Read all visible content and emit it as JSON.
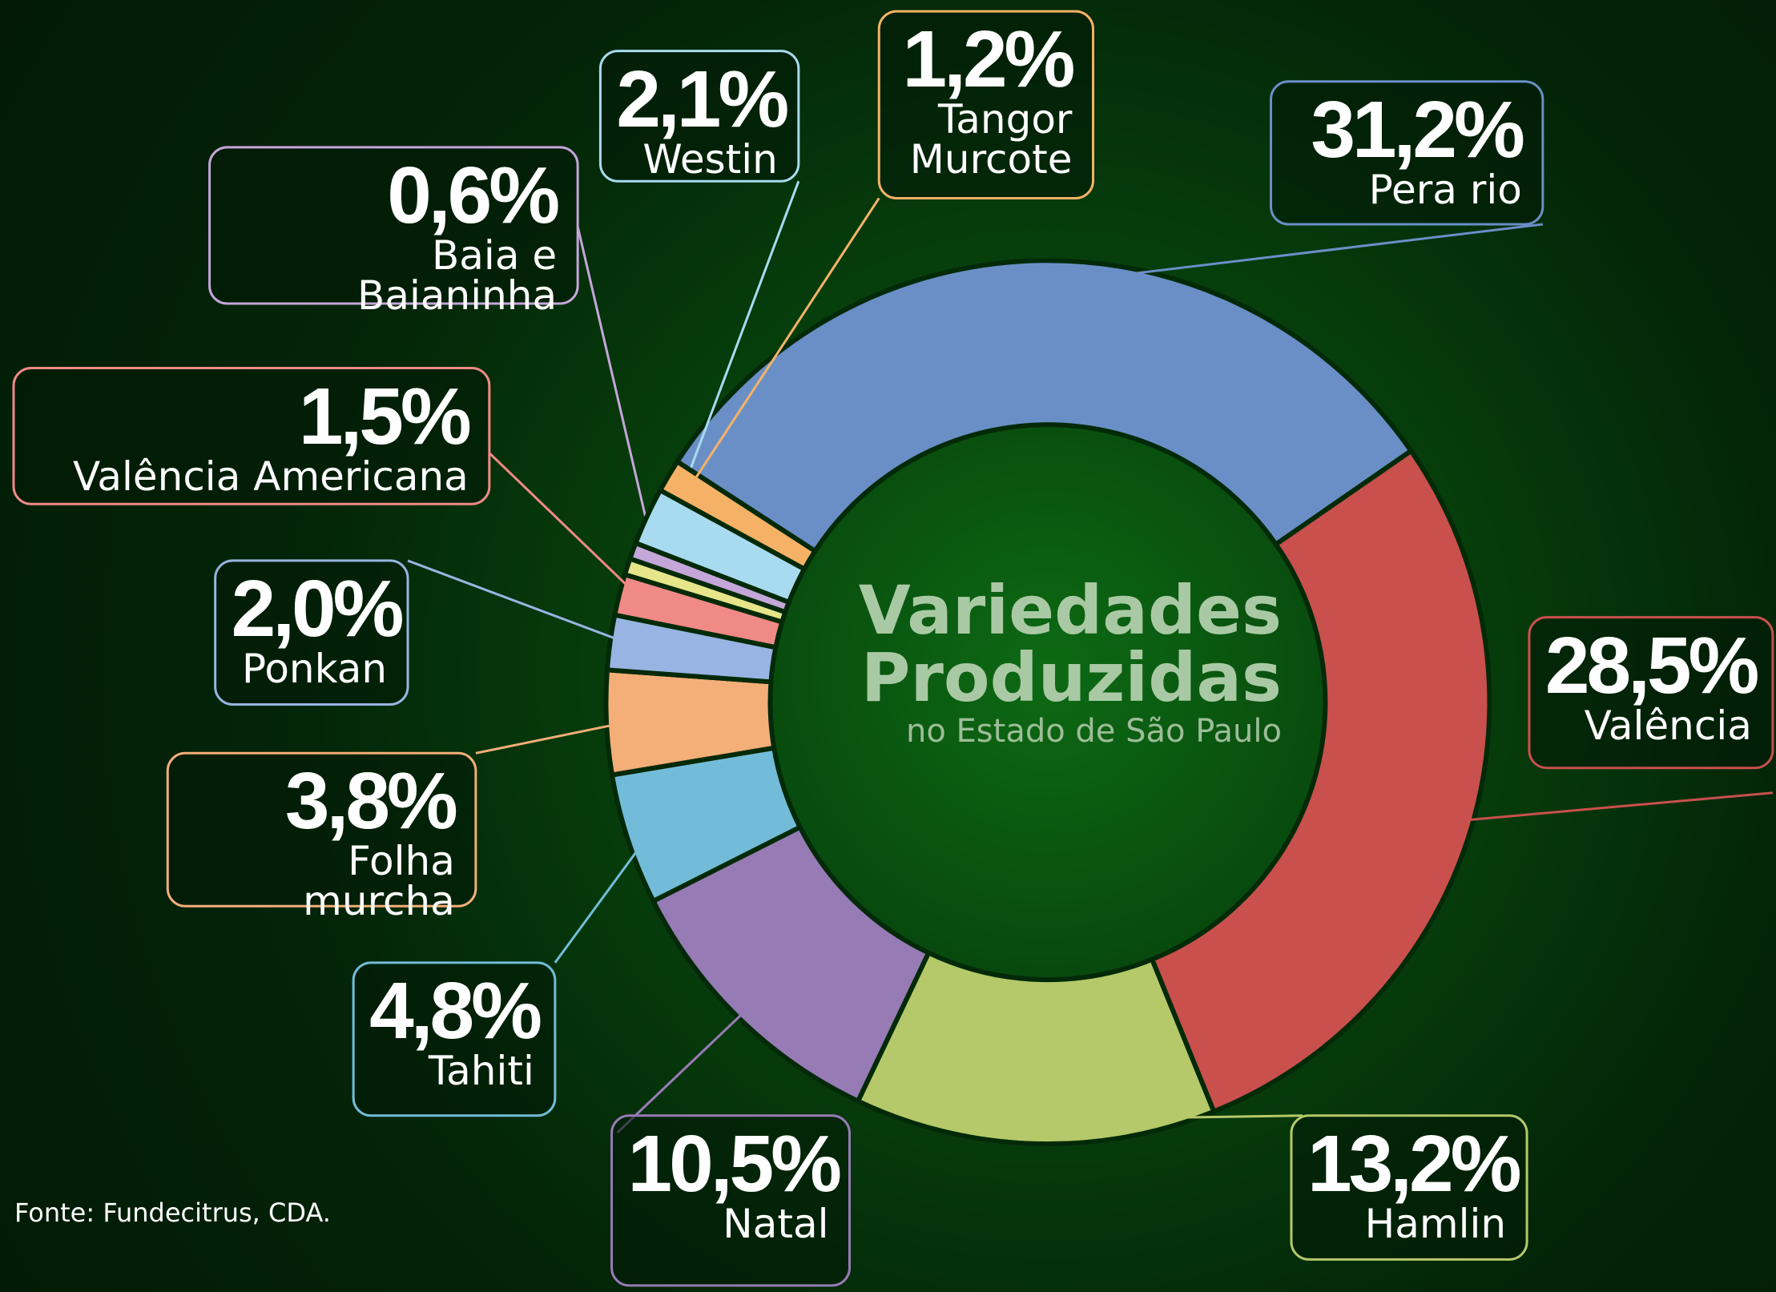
{
  "chart_data": {
    "type": "donut",
    "title": "Variedades Produzidas",
    "subtitle": "no Estado de São Paulo",
    "source": "Fonte: Fundecitrus, CDA.",
    "categories": [
      "Pera rio",
      "Valência",
      "Hamlin",
      "Natal",
      "Tahiti",
      "Folha murcha",
      "Ponkan",
      "Valência Americana",
      null,
      "Baia e Baianinha",
      "Westin",
      "Tangor Murcote"
    ],
    "values": [
      31.2,
      28.5,
      13.2,
      10.5,
      4.8,
      3.8,
      2.0,
      1.5,
      0.6,
      0.6,
      2.1,
      1.2
    ],
    "value_labels": [
      "31,2%",
      "28,5%",
      "13,2%",
      "10,5%",
      "4,8%",
      "3,8%",
      "2,0%",
      "1,5%",
      null,
      "0,6%",
      "2,1%",
      "1,2%"
    ],
    "colors": [
      "#6a8fc7",
      "#c9504d",
      "#b5c96a",
      "#977bb5",
      "#72bcd9",
      "#f4ae78",
      "#98b4e2",
      "#f08a86",
      "#e6e58a",
      "#c5a6d9",
      "#a8dbf0",
      "#f5b266"
    ]
  }
}
